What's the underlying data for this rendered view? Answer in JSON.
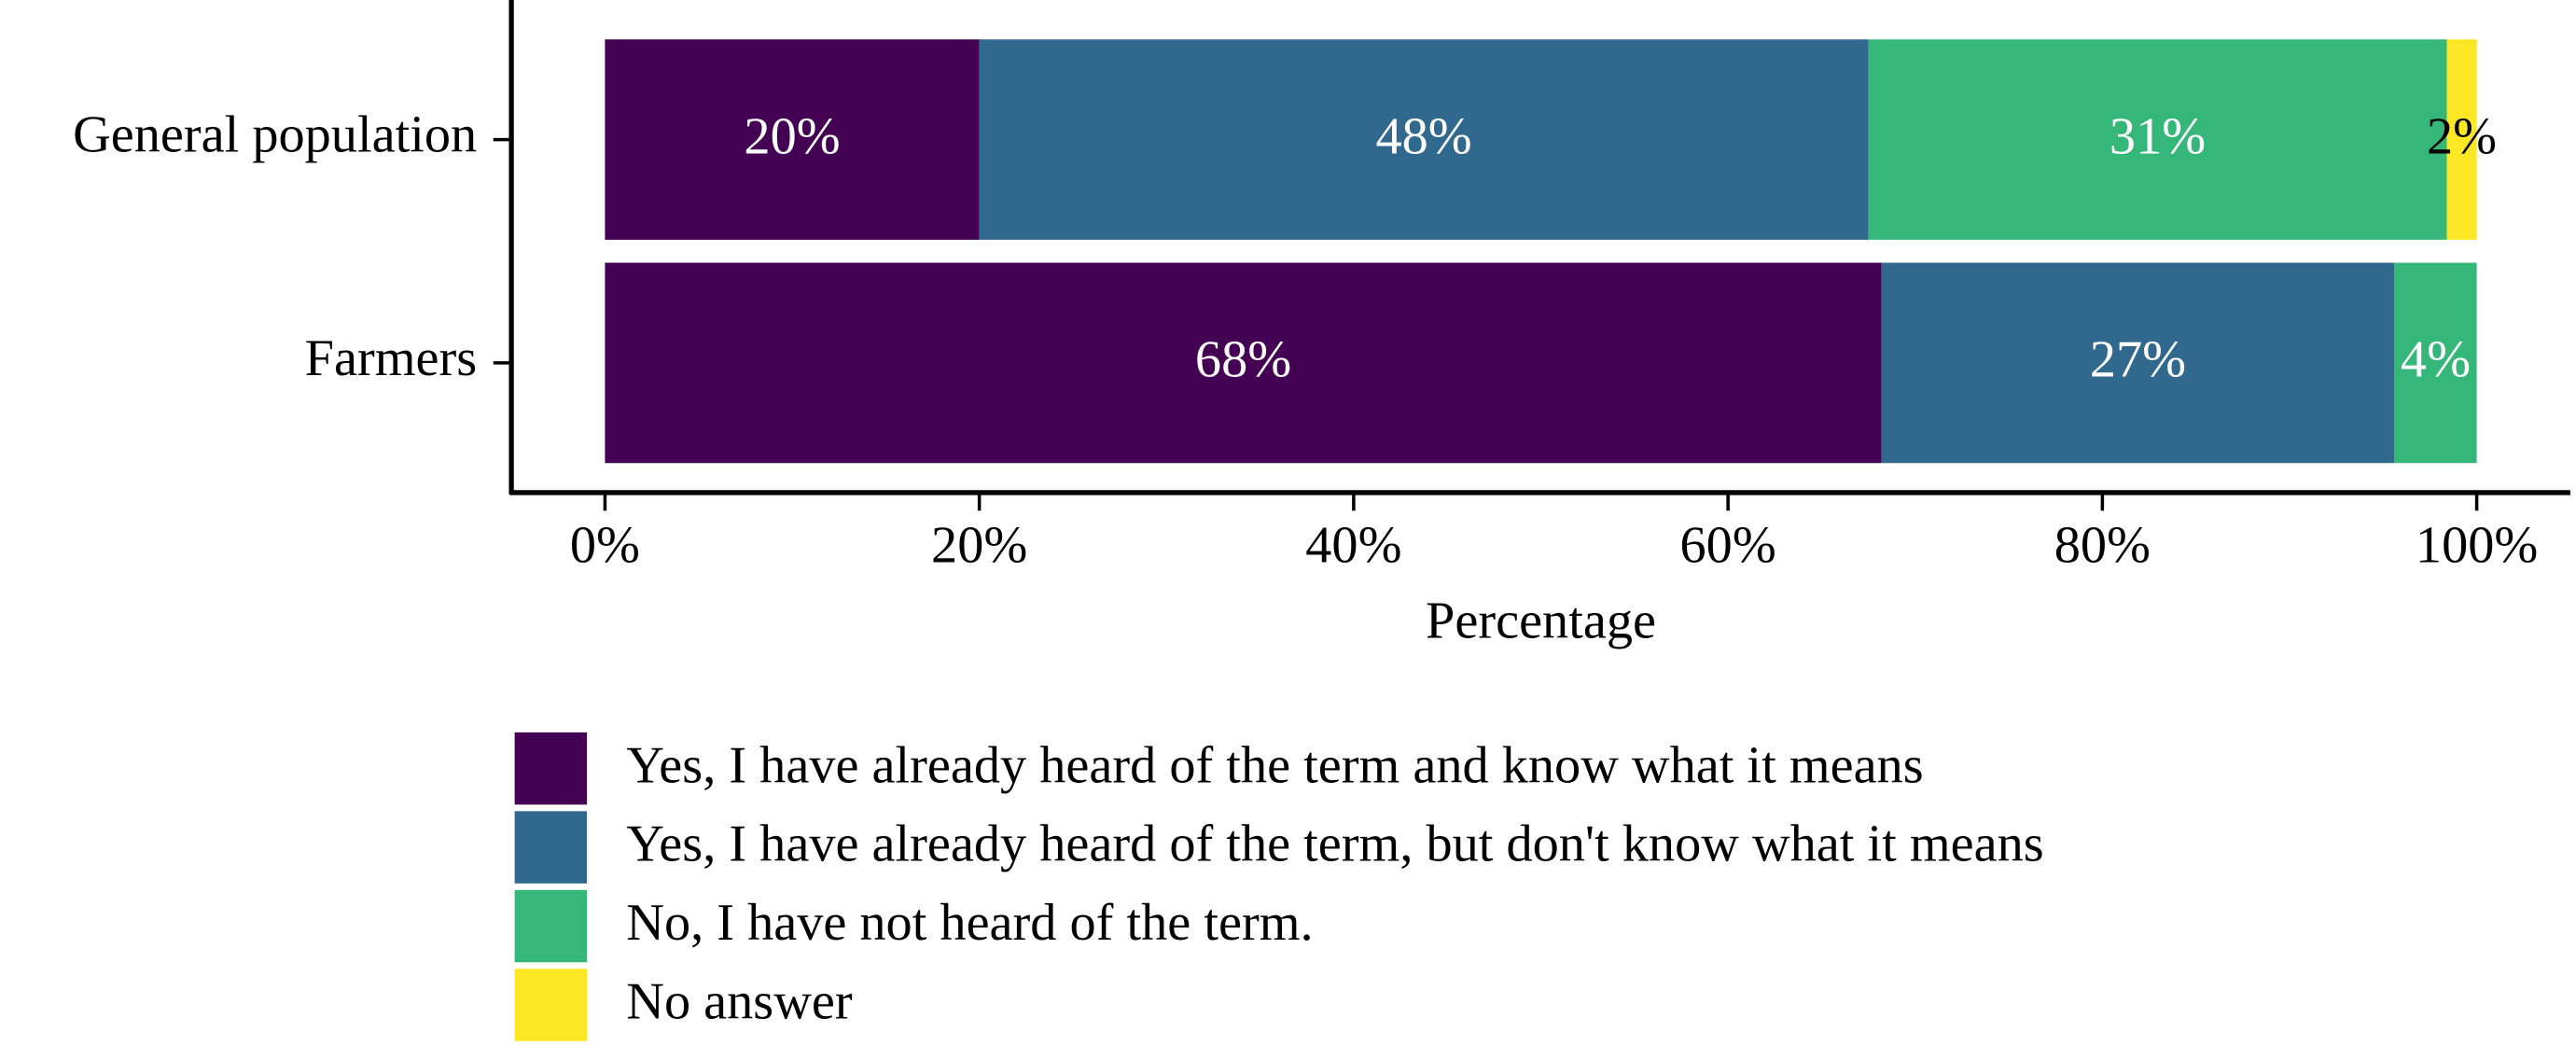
{
  "chart_data": {
    "type": "stacked-barh",
    "categories": [
      "General population",
      "Farmers"
    ],
    "series": [
      {
        "name": "Yes, I have already heard of the term and know what it means",
        "color": "#440154",
        "label_color": "#ffffff",
        "values": [
          20,
          68.2
        ],
        "value_labels": [
          "20%",
          "68%"
        ]
      },
      {
        "name": "Yes, I have already heard of the term, but don't know what it means",
        "color": "#31688e",
        "label_color": "#ffffff",
        "values": [
          47.5,
          27.4
        ],
        "value_labels": [
          "48%",
          "27%"
        ]
      },
      {
        "name": "No, I have not heard of the term.",
        "color": "#35b779",
        "label_color": "#ffffff",
        "values": [
          30.9,
          4.4
        ],
        "value_labels": [
          "31%",
          "4%"
        ]
      },
      {
        "name": "No answer",
        "color": "#fde725",
        "label_color": "#000000",
        "values": [
          1.6,
          null
        ],
        "value_labels": [
          "2%",
          null
        ]
      }
    ],
    "xlabel": "Percentage",
    "xlim": [
      -5,
      105
    ],
    "xticks": [
      {
        "value": 0,
        "label": "0%"
      },
      {
        "value": 20,
        "label": "20%"
      },
      {
        "value": 40,
        "label": "40%"
      },
      {
        "value": 60,
        "label": "60%"
      },
      {
        "value": 80,
        "label": "80%"
      },
      {
        "value": 100,
        "label": "100%"
      }
    ],
    "legend": "bottom"
  }
}
